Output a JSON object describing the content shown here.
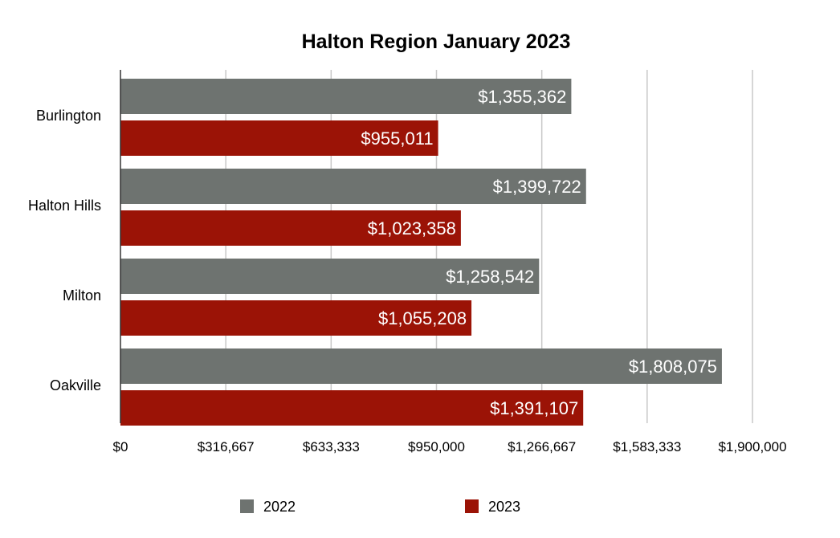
{
  "chart_data": {
    "type": "bar",
    "orientation": "horizontal",
    "title": "Halton Region January 2023",
    "xlabel": "",
    "ylabel": "",
    "categories": [
      "Burlington",
      "Halton Hills",
      "Milton",
      "Oakville"
    ],
    "series": [
      {
        "name": "2022",
        "color": "#6e7370",
        "values": [
          1355362,
          1399722,
          1258542,
          1808075
        ],
        "labels": [
          "$1,355,362",
          "$1,399,722",
          "$1,258,542",
          "$1,808,075"
        ]
      },
      {
        "name": "2023",
        "color": "#9b1306",
        "values": [
          955011,
          1023358,
          1055208,
          1391107
        ],
        "labels": [
          "$955,011",
          "$1,023,358",
          "$1,055,208",
          "$1,391,107"
        ]
      }
    ],
    "xlim": [
      0,
      1900000
    ],
    "ticks": [
      0,
      316667,
      633333,
      950000,
      1266667,
      1583333,
      1900000
    ],
    "tick_labels": [
      "$0",
      "$316,667",
      "$633,333",
      "$950,000",
      "$1,266,667",
      "$1,583,333",
      "$1,900,000"
    ],
    "grid": true,
    "legend_position": "bottom"
  }
}
